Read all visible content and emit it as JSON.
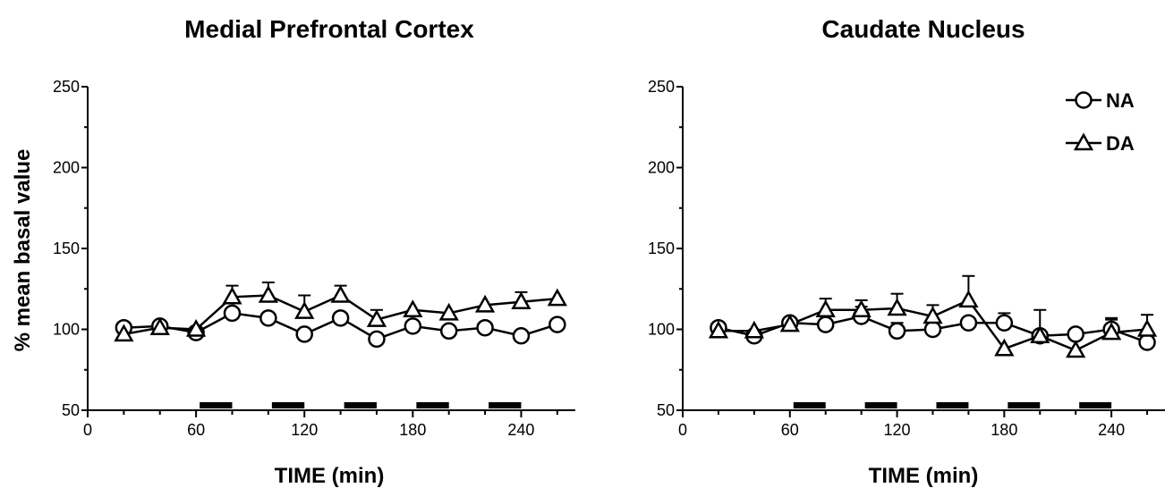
{
  "ylabel": "% mean basal value",
  "legend": {
    "placement": "top-right",
    "entries": [
      {
        "series": "NA",
        "label": "NA",
        "marker": "circle"
      },
      {
        "series": "DA",
        "label": "DA",
        "marker": "triangle"
      }
    ]
  },
  "colors": {
    "line": "#000000",
    "marker_fill": "#ffffff",
    "bar": "#000000",
    "background": "#ffffff"
  },
  "chart_data": [
    {
      "type": "line",
      "title": "Medial Prefrontal Cortex",
      "xlabel": "TIME (min)",
      "ylabel": "% mean basal value",
      "xlim": [
        0,
        270
      ],
      "ylim": [
        50,
        250
      ],
      "xticks": [
        "0",
        "60",
        "120",
        "180",
        "240"
      ],
      "yticks": [
        "50",
        "100",
        "150",
        "200",
        "250"
      ],
      "grid": false,
      "x": [
        20,
        40,
        60,
        80,
        100,
        120,
        140,
        160,
        180,
        200,
        220,
        240,
        260
      ],
      "series": [
        {
          "name": "NA",
          "marker": "circle",
          "values": [
            101,
            102,
            98,
            110,
            107,
            97,
            107,
            94,
            102,
            99,
            101,
            96,
            103
          ],
          "error": [
            0,
            0,
            0,
            0,
            0,
            0,
            0,
            0,
            0,
            0,
            0,
            0,
            0
          ]
        },
        {
          "name": "DA",
          "marker": "triangle",
          "values": [
            97,
            101,
            100,
            120,
            121,
            111,
            121,
            106,
            112,
            110,
            115,
            117,
            119
          ],
          "error": [
            0,
            0,
            0,
            7,
            8,
            10,
            6,
            6,
            0,
            0,
            0,
            6,
            0
          ]
        }
      ],
      "treatment_bars": [
        [
          62,
          80
        ],
        [
          102,
          120
        ],
        [
          142,
          160
        ],
        [
          182,
          200
        ],
        [
          222,
          240
        ]
      ]
    },
    {
      "type": "line",
      "title": "Caudate Nucleus",
      "xlabel": "TIME (min)",
      "ylabel": "",
      "xlim": [
        0,
        270
      ],
      "ylim": [
        50,
        250
      ],
      "xticks": [
        "0",
        "60",
        "120",
        "180",
        "240"
      ],
      "yticks": [
        "50",
        "100",
        "150",
        "200",
        "250"
      ],
      "grid": false,
      "x": [
        20,
        40,
        60,
        80,
        100,
        120,
        140,
        160,
        180,
        200,
        220,
        240,
        260
      ],
      "series": [
        {
          "name": "NA",
          "marker": "circle",
          "values": [
            101,
            96,
            104,
            103,
            108,
            99,
            100,
            104,
            104,
            96,
            97,
            100,
            92
          ],
          "error": [
            0,
            0,
            0,
            0,
            6,
            5,
            0,
            0,
            6,
            0,
            0,
            7,
            0
          ]
        },
        {
          "name": "DA",
          "marker": "triangle",
          "values": [
            99,
            99,
            103,
            112,
            112,
            113,
            108,
            118,
            88,
            96,
            87,
            98,
            100
          ],
          "error": [
            0,
            0,
            0,
            7,
            6,
            9,
            7,
            15,
            0,
            16,
            0,
            8,
            9
          ]
        }
      ],
      "treatment_bars": [
        [
          62,
          80
        ],
        [
          102,
          120
        ],
        [
          142,
          160
        ],
        [
          182,
          200
        ],
        [
          222,
          240
        ]
      ]
    }
  ]
}
